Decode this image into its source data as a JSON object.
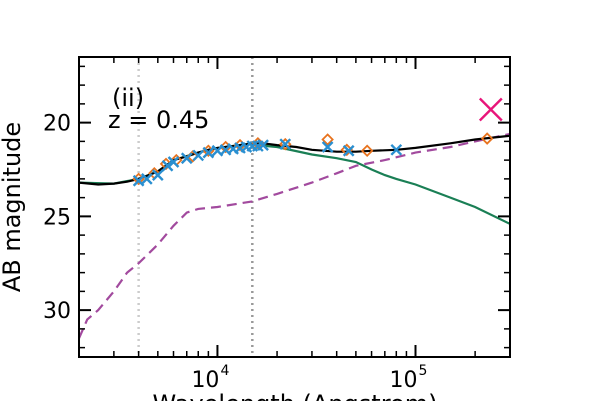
{
  "chart_data": {
    "type": "line",
    "panel_label": "(ii)",
    "annotation": "z = 0.45",
    "ylabel": "AB magnitude",
    "xlabel": "Wavelength (Angstrom)",
    "xscale": "log",
    "xlim": [
      2000,
      300000
    ],
    "ylim_inverted": [
      16.5,
      32.5
    ],
    "yticks": [
      {
        "value": 20,
        "label": "20"
      },
      {
        "value": 25,
        "label": "25"
      },
      {
        "value": 30,
        "label": "30"
      }
    ],
    "xticks": [
      {
        "value": 10000,
        "base": "10",
        "exp": "4"
      },
      {
        "value": 100000,
        "base": "10",
        "exp": "5"
      }
    ],
    "vlines": [
      {
        "x": 4000,
        "color": "#cccccc"
      },
      {
        "x": 15000,
        "color": "#999999"
      }
    ],
    "colors": {
      "total": "#000000",
      "component_green": "#1a7f55",
      "component_purple": "#a24a9e",
      "model_points": "#e8731e",
      "observed": "#2a8fd0",
      "upper_point": "#e8157a"
    },
    "series": [
      {
        "key": "total",
        "style": "solid",
        "points": [
          [
            2000,
            23.2
          ],
          [
            2500,
            23.3
          ],
          [
            3000,
            23.25
          ],
          [
            3500,
            23.15
          ],
          [
            4000,
            23.0
          ],
          [
            4500,
            22.8
          ],
          [
            5000,
            22.6
          ],
          [
            5500,
            22.3
          ],
          [
            6000,
            22.0
          ],
          [
            7000,
            21.8
          ],
          [
            8000,
            21.6
          ],
          [
            9000,
            21.45
          ],
          [
            10000,
            21.35
          ],
          [
            12000,
            21.25
          ],
          [
            14000,
            21.15
          ],
          [
            17000,
            21.1
          ],
          [
            20000,
            21.2
          ],
          [
            25000,
            21.3
          ],
          [
            30000,
            21.45
          ],
          [
            40000,
            21.55
          ],
          [
            50000,
            21.55
          ],
          [
            60000,
            21.5
          ],
          [
            80000,
            21.45
          ],
          [
            100000,
            21.35
          ],
          [
            150000,
            21.1
          ],
          [
            200000,
            20.9
          ],
          [
            300000,
            20.7
          ]
        ]
      },
      {
        "key": "component_green",
        "style": "solid",
        "points": [
          [
            2000,
            23.2
          ],
          [
            3000,
            23.25
          ],
          [
            4000,
            23.0
          ],
          [
            5000,
            22.6
          ],
          [
            6000,
            22.0
          ],
          [
            8000,
            21.6
          ],
          [
            10000,
            21.35
          ],
          [
            14000,
            21.15
          ],
          [
            20000,
            21.3
          ],
          [
            30000,
            21.7
          ],
          [
            40000,
            21.9
          ],
          [
            50000,
            22.1
          ],
          [
            60000,
            22.5
          ],
          [
            70000,
            22.8
          ],
          [
            80000,
            23.0
          ],
          [
            100000,
            23.3
          ],
          [
            150000,
            24.0
          ],
          [
            200000,
            24.5
          ],
          [
            300000,
            25.4
          ]
        ]
      },
      {
        "key": "component_purple",
        "style": "dashed",
        "points": [
          [
            2000,
            31.5
          ],
          [
            2200,
            30.5
          ],
          [
            2500,
            30.0
          ],
          [
            3000,
            29.0
          ],
          [
            3500,
            28.0
          ],
          [
            4000,
            27.5
          ],
          [
            5000,
            26.5
          ],
          [
            6000,
            25.5
          ],
          [
            7000,
            24.8
          ],
          [
            8000,
            24.6
          ],
          [
            10000,
            24.5
          ],
          [
            15000,
            24.2
          ],
          [
            20000,
            23.8
          ],
          [
            30000,
            23.2
          ],
          [
            40000,
            22.7
          ],
          [
            50000,
            22.3
          ],
          [
            70000,
            22.0
          ],
          [
            100000,
            21.6
          ],
          [
            150000,
            21.3
          ],
          [
            200000,
            21.0
          ],
          [
            300000,
            20.6
          ]
        ]
      }
    ],
    "model_points": [
      [
        4000,
        23.0
      ],
      [
        4800,
        22.7
      ],
      [
        5500,
        22.2
      ],
      [
        6200,
        22.0
      ],
      [
        7500,
        21.8
      ],
      [
        9000,
        21.5
      ],
      [
        11000,
        21.3
      ],
      [
        13000,
        21.2
      ],
      [
        16000,
        21.1
      ],
      [
        22000,
        21.15
      ],
      [
        36000,
        20.9
      ],
      [
        45000,
        21.45
      ],
      [
        57000,
        21.5
      ],
      [
        230000,
        20.85
      ]
    ],
    "observed_points": [
      [
        4000,
        23.1
      ],
      [
        4400,
        23.0
      ],
      [
        5000,
        22.8
      ],
      [
        5600,
        22.3
      ],
      [
        6000,
        22.1
      ],
      [
        7000,
        21.9
      ],
      [
        8000,
        21.75
      ],
      [
        9000,
        21.6
      ],
      [
        10000,
        21.5
      ],
      [
        11000,
        21.45
      ],
      [
        12000,
        21.4
      ],
      [
        13000,
        21.35
      ],
      [
        14000,
        21.3
      ],
      [
        15000,
        21.25
      ],
      [
        16000,
        21.25
      ],
      [
        17000,
        21.2
      ],
      [
        22000,
        21.15
      ],
      [
        36000,
        21.3
      ],
      [
        46000,
        21.5
      ],
      [
        80000,
        21.45
      ]
    ],
    "upper_point": [
      240000,
      19.3
    ]
  }
}
